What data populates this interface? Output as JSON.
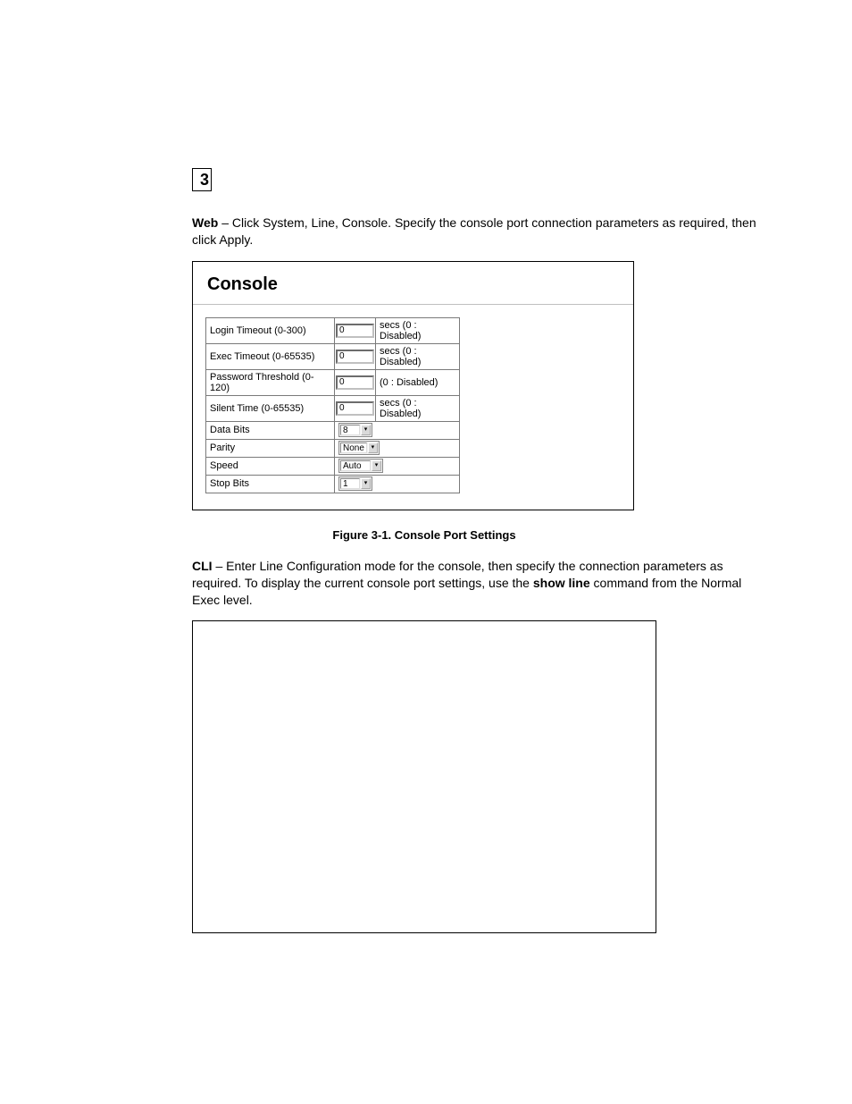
{
  "chapter_number": "3",
  "intro": {
    "web_label": "Web",
    "web_text": " – Click System, Line, Console. Specify the console port connection parameters as required, then click Apply."
  },
  "panel": {
    "title": "Console",
    "rows": {
      "login_timeout": {
        "label": "Login Timeout (0-300)",
        "value": "0",
        "suffix": "secs (0 : Disabled)"
      },
      "exec_timeout": {
        "label": "Exec Timeout (0-65535)",
        "value": "0",
        "suffix": "secs (0 : Disabled)"
      },
      "password_threshold": {
        "label": "Password Threshold (0-120)",
        "value": "0",
        "suffix": "(0 : Disabled)"
      },
      "silent_time": {
        "label": "Silent Time (0-65535)",
        "value": "0",
        "suffix": "secs (0 : Disabled)"
      },
      "data_bits": {
        "label": "Data Bits",
        "value": "8"
      },
      "parity": {
        "label": "Parity",
        "value": "None"
      },
      "speed": {
        "label": "Speed",
        "value": "Auto"
      },
      "stop_bits": {
        "label": "Stop Bits",
        "value": "1"
      }
    }
  },
  "figure_caption": "Figure 3-1.   Console Port Settings",
  "cli": {
    "label": "CLI",
    "text_part1": " – Enter Line Configuration mode for the console, then specify the connection parameters as required. To display the current console port settings, use the ",
    "show_line": "show line",
    "text_part2": " command from the Normal Exec level."
  },
  "colors": {
    "text": "#000000",
    "border": "#000000",
    "cell_border": "#7a7a7a",
    "background": "#ffffff"
  }
}
